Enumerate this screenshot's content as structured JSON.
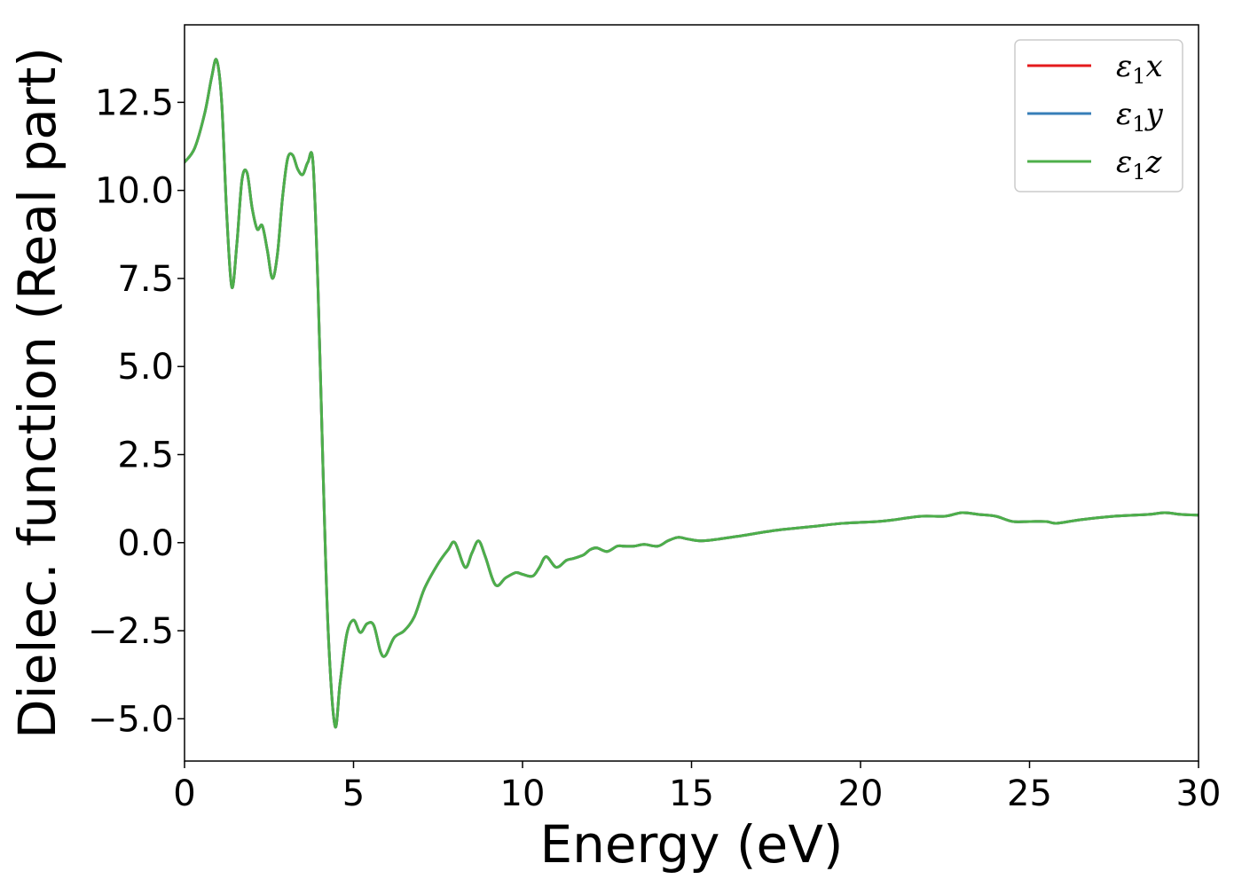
{
  "chart_data": {
    "type": "line",
    "title": "",
    "xlabel": "Energy (eV)",
    "ylabel": "Dielec. function (Real part)",
    "xlim": [
      0,
      30
    ],
    "ylim": [
      -6.2,
      14.7
    ],
    "xticks": [
      0,
      5,
      10,
      15,
      20,
      25,
      30
    ],
    "xtick_labels": [
      "0",
      "5",
      "10",
      "15",
      "20",
      "25",
      "30"
    ],
    "yticks": [
      -5.0,
      -2.5,
      0.0,
      2.5,
      5.0,
      7.5,
      10.0,
      12.5
    ],
    "ytick_labels": [
      "−5.0",
      "−2.5",
      "0.0",
      "2.5",
      "5.0",
      "7.5",
      "10.0",
      "12.5"
    ],
    "grid": false,
    "legend_position": "top-right",
    "x": [
      0.0,
      0.3,
      0.6,
      0.8,
      0.95,
      1.1,
      1.25,
      1.4,
      1.55,
      1.7,
      1.85,
      2.0,
      2.15,
      2.3,
      2.45,
      2.6,
      2.75,
      2.9,
      3.05,
      3.2,
      3.35,
      3.5,
      3.65,
      3.8,
      3.95,
      4.1,
      4.25,
      4.45,
      4.6,
      4.8,
      5.0,
      5.2,
      5.4,
      5.6,
      5.8,
      5.95,
      6.2,
      6.5,
      6.8,
      7.1,
      7.5,
      7.8,
      8.0,
      8.3,
      8.5,
      8.7,
      8.9,
      9.2,
      9.5,
      9.8,
      10.0,
      10.3,
      10.5,
      10.7,
      11.0,
      11.3,
      11.5,
      11.8,
      12.0,
      12.2,
      12.5,
      12.8,
      13.0,
      13.3,
      13.6,
      14.0,
      14.3,
      14.6,
      14.9,
      15.3,
      15.8,
      16.5,
      17.5,
      18.5,
      19.5,
      20.5,
      21.0,
      21.8,
      22.5,
      23.0,
      23.5,
      24.0,
      24.5,
      25.0,
      25.5,
      25.8,
      26.5,
      27.5,
      28.5,
      29.0,
      29.5,
      30.0
    ],
    "series": [
      {
        "name": "ε₁x",
        "color": "#e41a1c",
        "values": [
          10.8,
          11.2,
          12.2,
          13.2,
          13.7,
          12.5,
          9.3,
          7.25,
          8.5,
          10.3,
          10.5,
          9.5,
          8.9,
          9.0,
          8.3,
          7.5,
          8.2,
          9.8,
          10.9,
          11.0,
          10.6,
          10.45,
          10.8,
          10.8,
          7.2,
          2.0,
          -2.5,
          -5.2,
          -4.0,
          -2.6,
          -2.2,
          -2.55,
          -2.3,
          -2.35,
          -3.1,
          -3.2,
          -2.7,
          -2.5,
          -2.1,
          -1.3,
          -0.6,
          -0.2,
          0.0,
          -0.7,
          -0.3,
          0.05,
          -0.4,
          -1.2,
          -1.0,
          -0.85,
          -0.9,
          -0.95,
          -0.7,
          -0.4,
          -0.7,
          -0.5,
          -0.45,
          -0.35,
          -0.2,
          -0.15,
          -0.25,
          -0.1,
          -0.1,
          -0.1,
          -0.05,
          -0.1,
          0.05,
          0.15,
          0.1,
          0.05,
          0.1,
          0.2,
          0.35,
          0.45,
          0.55,
          0.6,
          0.65,
          0.75,
          0.75,
          0.85,
          0.8,
          0.75,
          0.6,
          0.6,
          0.6,
          0.55,
          0.65,
          0.75,
          0.8,
          0.85,
          0.8,
          0.78
        ]
      },
      {
        "name": "ε₁y",
        "color": "#377eb8",
        "values": [
          10.8,
          11.2,
          12.2,
          13.2,
          13.7,
          12.5,
          9.3,
          7.25,
          8.5,
          10.3,
          10.5,
          9.5,
          8.9,
          9.0,
          8.3,
          7.5,
          8.2,
          9.8,
          10.9,
          11.0,
          10.6,
          10.45,
          10.8,
          10.8,
          7.2,
          2.0,
          -2.5,
          -5.2,
          -4.0,
          -2.6,
          -2.2,
          -2.55,
          -2.3,
          -2.35,
          -3.1,
          -3.2,
          -2.7,
          -2.5,
          -2.1,
          -1.3,
          -0.6,
          -0.2,
          0.0,
          -0.7,
          -0.3,
          0.05,
          -0.4,
          -1.2,
          -1.0,
          -0.85,
          -0.9,
          -0.95,
          -0.7,
          -0.4,
          -0.7,
          -0.5,
          -0.45,
          -0.35,
          -0.2,
          -0.15,
          -0.25,
          -0.1,
          -0.1,
          -0.1,
          -0.05,
          -0.1,
          0.05,
          0.15,
          0.1,
          0.05,
          0.1,
          0.2,
          0.35,
          0.45,
          0.55,
          0.6,
          0.65,
          0.75,
          0.75,
          0.85,
          0.8,
          0.75,
          0.6,
          0.6,
          0.6,
          0.55,
          0.65,
          0.75,
          0.8,
          0.85,
          0.8,
          0.78
        ]
      },
      {
        "name": "ε₁z",
        "color": "#4daf4a",
        "values": [
          10.8,
          11.2,
          12.2,
          13.2,
          13.7,
          12.5,
          9.3,
          7.25,
          8.5,
          10.3,
          10.5,
          9.5,
          8.9,
          9.0,
          8.3,
          7.5,
          8.2,
          9.8,
          10.9,
          11.0,
          10.6,
          10.45,
          10.8,
          10.8,
          7.2,
          2.0,
          -2.5,
          -5.2,
          -4.0,
          -2.6,
          -2.2,
          -2.55,
          -2.3,
          -2.35,
          -3.1,
          -3.2,
          -2.7,
          -2.5,
          -2.1,
          -1.3,
          -0.6,
          -0.2,
          0.0,
          -0.7,
          -0.3,
          0.05,
          -0.4,
          -1.2,
          -1.0,
          -0.85,
          -0.9,
          -0.95,
          -0.7,
          -0.4,
          -0.7,
          -0.5,
          -0.45,
          -0.35,
          -0.2,
          -0.15,
          -0.25,
          -0.1,
          -0.1,
          -0.1,
          -0.05,
          -0.1,
          0.05,
          0.15,
          0.1,
          0.05,
          0.1,
          0.2,
          0.35,
          0.45,
          0.55,
          0.6,
          0.65,
          0.75,
          0.75,
          0.85,
          0.8,
          0.75,
          0.6,
          0.6,
          0.6,
          0.55,
          0.65,
          0.75,
          0.8,
          0.85,
          0.8,
          0.78
        ]
      }
    ],
    "legend": {
      "entries": [
        {
          "base": "ε",
          "sub": "1",
          "tail": "x"
        },
        {
          "base": "ε",
          "sub": "1",
          "tail": "y"
        },
        {
          "base": "ε",
          "sub": "1",
          "tail": "z"
        }
      ]
    }
  }
}
